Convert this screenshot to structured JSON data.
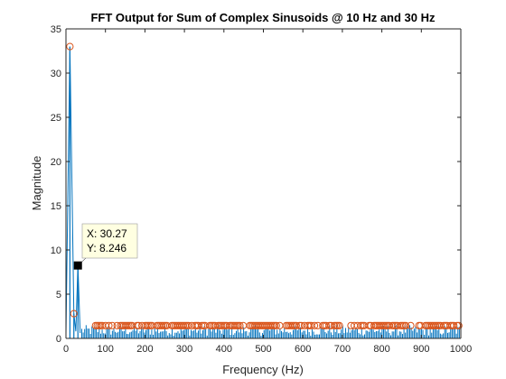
{
  "chart_data": {
    "type": "line",
    "title": "FFT Output for Sum of Complex Sinusoids @ 10 Hz and 30 Hz",
    "xlabel": "Frequency (Hz)",
    "ylabel": "Magnitude",
    "xlim": [
      0,
      1000
    ],
    "ylim": [
      0,
      35
    ],
    "xticks": [
      0,
      100,
      200,
      300,
      400,
      500,
      600,
      700,
      800,
      900,
      1000
    ],
    "yticks": [
      0,
      5,
      10,
      15,
      20,
      25,
      30,
      35
    ],
    "grid": false,
    "colors": {
      "line": "#0072BD",
      "marker": "#D95319",
      "datatip_bg": "#FFFFE1"
    },
    "series": [
      {
        "style": "stem with circle markers",
        "peaks": [
          {
            "x": 10,
            "y": 33.0
          },
          {
            "x": 20,
            "y": 2.8
          },
          {
            "x": 30.27,
            "y": 8.246
          }
        ],
        "noise_floor": {
          "x_range": [
            40,
            1000
          ],
          "y_range": [
            0.3,
            1.5
          ],
          "marker_y": 1.45
        }
      }
    ],
    "datatip": {
      "x_label": "X: 30.27",
      "y_label": "Y: 8.246",
      "x": 30.27,
      "y": 8.246
    }
  }
}
